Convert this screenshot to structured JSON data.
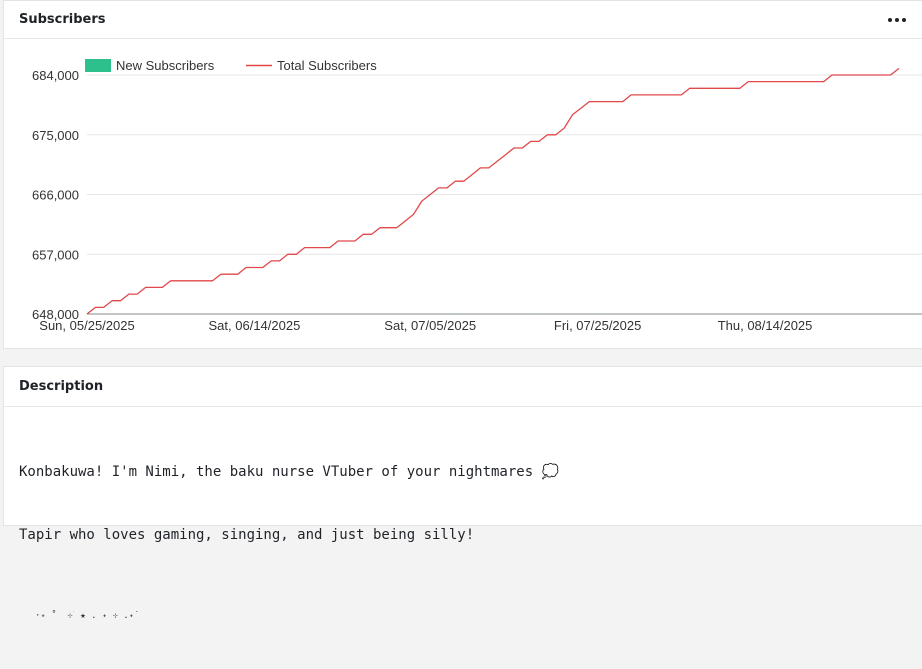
{
  "subscribers_card": {
    "title": "Subscribers",
    "menu_icon": "more-horizontal-icon"
  },
  "description_card": {
    "title": "Description",
    "line1": "Konbakuwa! I'm Nimi, the baku nurse VTuber of your nightmares 💭",
    "line2": "Tapir who loves gaming, singing, and just being silly!",
    "line3": "·˖ ˚  ⊹ ࣪ ★ . ˖ ⊹ .˖˙"
  },
  "colors": {
    "bar": "#2dbf8c",
    "line": "#e0484a",
    "grid": "#e6e6e6",
    "axis": "#888888"
  },
  "chart_data": {
    "type": "bar+line",
    "legend_position": "top-left",
    "grid": true,
    "series": [
      {
        "name": "New Subscribers",
        "type": "bar",
        "axis_max": 3000,
        "x": [
          "2025-05-26",
          "2025-05-27",
          "2025-05-29",
          "2025-05-31",
          "2025-06-04",
          "2025-06-11",
          "2025-06-15",
          "2025-06-19",
          "2025-06-21",
          "2025-06-23",
          "2025-06-27",
          "2025-07-01",
          "2025-07-03",
          "2025-07-06",
          "2025-07-07",
          "2025-07-08",
          "2025-07-09",
          "2025-07-10",
          "2025-07-12",
          "2025-07-14",
          "2025-07-15",
          "2025-07-17",
          "2025-07-18",
          "2025-07-19",
          "2025-07-21",
          "2025-07-23",
          "2025-07-24",
          "2025-07-25",
          "2025-07-26",
          "2025-07-27",
          "2025-08-03",
          "2025-08-09",
          "2025-08-15",
          "2025-08-23",
          "2025-08-30"
        ],
        "values": [
          1,
          1,
          1,
          1,
          1,
          1,
          1,
          1,
          1,
          1,
          1,
          1,
          1,
          1,
          1,
          2,
          1,
          1,
          1,
          1,
          1,
          1,
          1,
          1,
          1,
          1,
          1,
          2,
          1,
          1,
          1,
          1,
          1,
          1,
          1
        ]
      },
      {
        "name": "Total Subscribers",
        "type": "line",
        "x": [
          "2025-05-25",
          "2025-05-26",
          "2025-05-27",
          "2025-05-28",
          "2025-05-29",
          "2025-05-30",
          "2025-05-31",
          "2025-06-01",
          "2025-06-02",
          "2025-06-03",
          "2025-06-04",
          "2025-06-05",
          "2025-06-06",
          "2025-06-07",
          "2025-06-08",
          "2025-06-09",
          "2025-06-10",
          "2025-06-11",
          "2025-06-12",
          "2025-06-13",
          "2025-06-14",
          "2025-06-15",
          "2025-06-16",
          "2025-06-17",
          "2025-06-18",
          "2025-06-19",
          "2025-06-20",
          "2025-06-21",
          "2025-06-22",
          "2025-06-23",
          "2025-06-24",
          "2025-06-25",
          "2025-06-26",
          "2025-06-27",
          "2025-06-28",
          "2025-06-29",
          "2025-06-30",
          "2025-07-01",
          "2025-07-02",
          "2025-07-03",
          "2025-07-04",
          "2025-07-05",
          "2025-07-06",
          "2025-07-07",
          "2025-07-08",
          "2025-07-09",
          "2025-07-10",
          "2025-07-11",
          "2025-07-12",
          "2025-07-13",
          "2025-07-14",
          "2025-07-15",
          "2025-07-16",
          "2025-07-17",
          "2025-07-18",
          "2025-07-19",
          "2025-07-20",
          "2025-07-21",
          "2025-07-22",
          "2025-07-23",
          "2025-07-24",
          "2025-07-25",
          "2025-07-26",
          "2025-07-27",
          "2025-07-28",
          "2025-07-29",
          "2025-07-30",
          "2025-07-31",
          "2025-08-01",
          "2025-08-02",
          "2025-08-03",
          "2025-08-04",
          "2025-08-05",
          "2025-08-06",
          "2025-08-07",
          "2025-08-08",
          "2025-08-09",
          "2025-08-10",
          "2025-08-11",
          "2025-08-12",
          "2025-08-13",
          "2025-08-14",
          "2025-08-15",
          "2025-08-16",
          "2025-08-17",
          "2025-08-18",
          "2025-08-19",
          "2025-08-20",
          "2025-08-21",
          "2025-08-22",
          "2025-08-23",
          "2025-08-24",
          "2025-08-25",
          "2025-08-26",
          "2025-08-27",
          "2025-08-28",
          "2025-08-29",
          "2025-08-30"
        ],
        "values": [
          648000,
          649000,
          649000,
          650000,
          650000,
          651000,
          651000,
          652000,
          652000,
          652000,
          653000,
          653000,
          653000,
          653000,
          653000,
          653000,
          654000,
          654000,
          654000,
          655000,
          655000,
          655000,
          656000,
          656000,
          657000,
          657000,
          658000,
          658000,
          658000,
          658000,
          659000,
          659000,
          659000,
          660000,
          660000,
          661000,
          661000,
          661000,
          662000,
          663000,
          665000,
          666000,
          667000,
          667000,
          668000,
          668000,
          669000,
          670000,
          670000,
          671000,
          672000,
          673000,
          673000,
          674000,
          674000,
          675000,
          675000,
          676000,
          678000,
          679000,
          680000,
          680000,
          680000,
          680000,
          680000,
          681000,
          681000,
          681000,
          681000,
          681000,
          681000,
          681000,
          682000,
          682000,
          682000,
          682000,
          682000,
          682000,
          682000,
          683000,
          683000,
          683000,
          683000,
          683000,
          683000,
          683000,
          683000,
          683000,
          683000,
          684000,
          684000,
          684000,
          684000,
          684000,
          684000,
          684000,
          684000,
          685000
        ]
      }
    ],
    "y_axis": {
      "min": 648000,
      "max": 684000,
      "ticks": [
        648000,
        657000,
        666000,
        675000,
        684000
      ],
      "tick_labels": [
        "648,000",
        "657,000",
        "666,000",
        "675,000",
        "684,000"
      ]
    },
    "x_axis": {
      "min": "2025-05-25",
      "max": "2025-08-30",
      "ticks": [
        "2025-05-25",
        "2025-06-14",
        "2025-07-05",
        "2025-07-25",
        "2025-08-14"
      ],
      "tick_labels": [
        "Sun, 05/25/2025",
        "Sat, 06/14/2025",
        "Sat, 07/05/2025",
        "Fri, 07/25/2025",
        "Thu, 08/14/2025"
      ]
    }
  }
}
